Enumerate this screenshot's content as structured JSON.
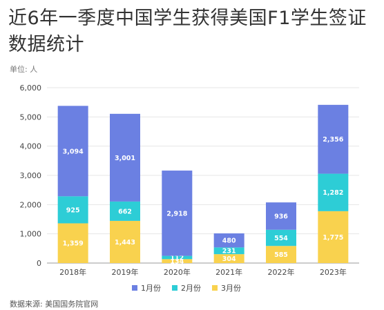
{
  "chart_data": {
    "type": "bar",
    "stacked": true,
    "title": "近6年一季度中国学生获得美国F1学生签证数据统计",
    "unit_label": "单位: 人",
    "source": "数据来源: 美国国务院官网",
    "categories": [
      "2018年",
      "2019年",
      "2020年",
      "2021年",
      "2022年",
      "2023年"
    ],
    "series": [
      {
        "name": "3月份",
        "color": "#f9d24e",
        "values": [
          1359,
          1443,
          134,
          304,
          585,
          1775
        ],
        "labels": [
          "1,359",
          "1,443",
          "134",
          "304",
          "585",
          "1,775"
        ]
      },
      {
        "name": "2月份",
        "color": "#2dcdd6",
        "values": [
          925,
          662,
          112,
          231,
          554,
          1282
        ],
        "labels": [
          "925",
          "662",
          "112",
          "231",
          "554",
          "1,282"
        ]
      },
      {
        "name": "1月份",
        "color": "#6b80e2",
        "values": [
          3094,
          3001,
          2918,
          480,
          936,
          2356
        ],
        "labels": [
          "3,094",
          "3,001",
          "2,918",
          "480",
          "936",
          "2,356"
        ]
      }
    ],
    "legend_order": [
      2,
      1,
      0
    ],
    "ylim": [
      0,
      6000
    ],
    "yticks": [
      0,
      1000,
      2000,
      3000,
      4000,
      5000,
      6000
    ],
    "ytick_labels": [
      "0",
      "1,000",
      "2,000",
      "3,000",
      "4,000",
      "5,000",
      "6,000"
    ],
    "grid": true,
    "legend_position": "bottom-center"
  }
}
